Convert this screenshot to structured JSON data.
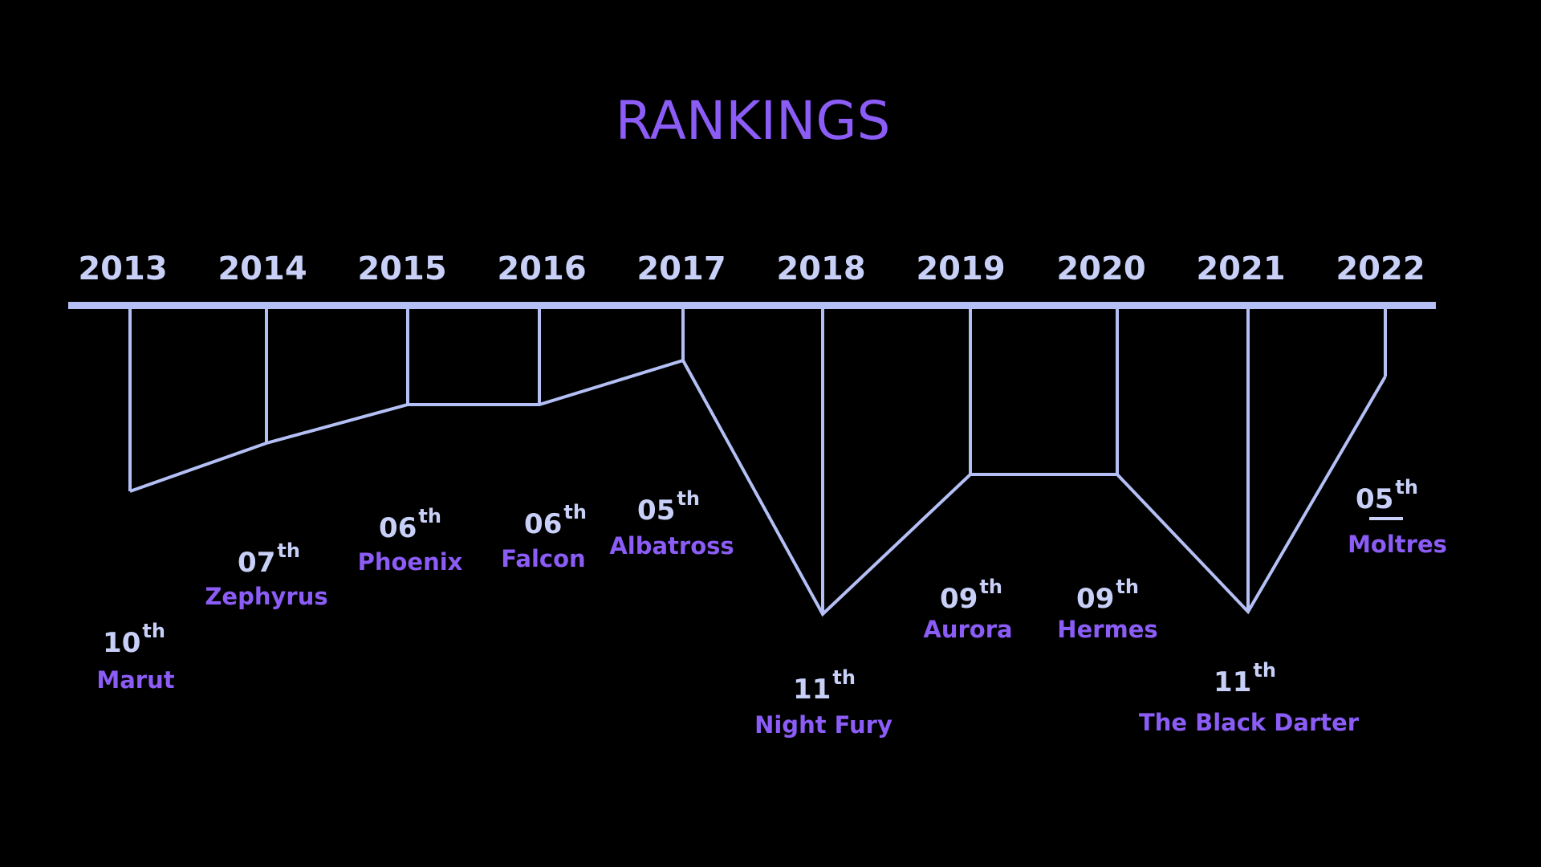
{
  "colors": {
    "background": "#000000",
    "line": "#b4c0f5",
    "title": "#8b5cf6",
    "team": "#8b5cf6",
    "rank": "#c8d0f7",
    "year": "#c8d0f7"
  },
  "chart_data": {
    "type": "line",
    "title": "RANKINGS",
    "xlabel": "",
    "ylabel": "",
    "y_axis_visible": false,
    "y_inverted": true,
    "x": [
      "2013",
      "2014",
      "2015",
      "2016",
      "2017",
      "2018",
      "2019",
      "2020",
      "2021",
      "2022"
    ],
    "ranks": [
      10,
      7,
      6,
      6,
      5,
      11,
      9,
      9,
      11,
      5
    ],
    "rank_labels": [
      "10",
      "07",
      "06",
      "06",
      "05",
      "11",
      "09",
      "09",
      "11",
      "05"
    ],
    "rank_suffix": "th",
    "teams": [
      "Marut",
      "Zephyrus",
      "Phoenix",
      "Falcon",
      "Albatross",
      "Night Fury",
      "Aurora",
      "Hermes",
      "The Black Darter",
      "Moltres"
    ]
  }
}
